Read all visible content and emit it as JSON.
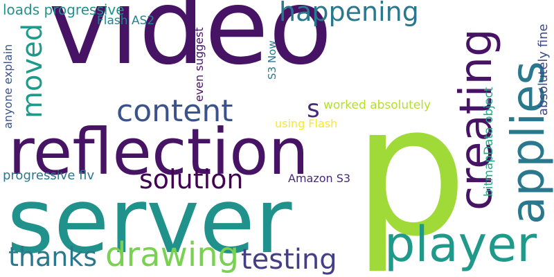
{
  "words": [
    {
      "text": "video",
      "color": "#471365"
    },
    {
      "text": "p",
      "color": "#a0da39"
    },
    {
      "text": "server",
      "color": "#21918c"
    },
    {
      "text": "reflection",
      "color": "#471365"
    },
    {
      "text": "creating",
      "color": "#471365"
    },
    {
      "text": "applies",
      "color": "#2a788e"
    },
    {
      "text": "player",
      "color": "#1f9a8a"
    },
    {
      "text": "content",
      "color": "#3b528b"
    },
    {
      "text": "happening",
      "color": "#2a788e"
    },
    {
      "text": "moved",
      "color": "#1f9a8a"
    },
    {
      "text": "drawing",
      "color": "#7ad151"
    },
    {
      "text": "testing",
      "color": "#433e85"
    },
    {
      "text": "thanks",
      "color": "#2a788e"
    },
    {
      "text": "solution",
      "color": "#440154"
    },
    {
      "text": "s",
      "color": "#482878"
    },
    {
      "text": "loads progressive",
      "color": "#21918c"
    },
    {
      "text": "Flash AS2",
      "color": "#26828e"
    },
    {
      "text": "anyone explain",
      "color": "#3b528b"
    },
    {
      "text": "even suggest",
      "color": "#471365"
    },
    {
      "text": "S3 Now",
      "color": "#2a788e"
    },
    {
      "text": "worked absolutely",
      "color": "#b5de2b"
    },
    {
      "text": "using Flash",
      "color": "#fde725"
    },
    {
      "text": "bitmapData object",
      "color": "#22a884"
    },
    {
      "text": "absolutely fine",
      "color": "#3e4989"
    },
    {
      "text": "progressive flv",
      "color": "#2a788e"
    },
    {
      "text": "Amazon S3",
      "color": "#482878"
    }
  ]
}
